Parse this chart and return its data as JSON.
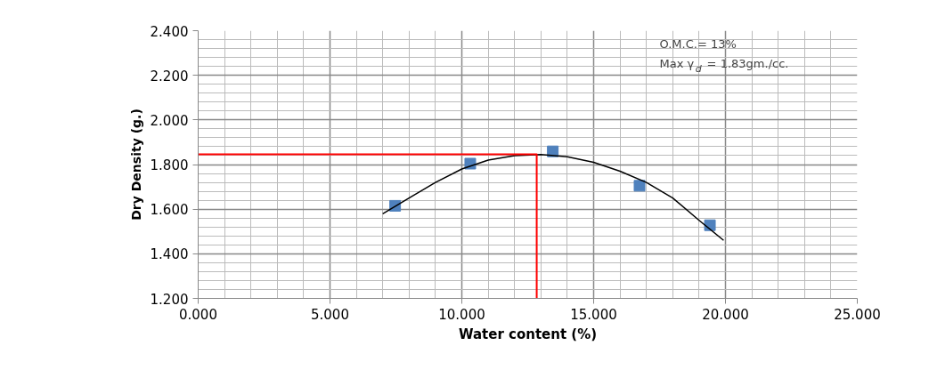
{
  "chart_data": {
    "type": "scatter",
    "xlabel": "Water content (%)",
    "ylabel": "Dry Density (g.)",
    "annotations": [
      "O.M.C.= 13%",
      "Max γ$_{d}$ = 1.83gm./cc."
    ],
    "xlim": [
      0,
      25
    ],
    "ylim": [
      1.2,
      2.4
    ],
    "xticks": [
      {
        "value": 0,
        "label": "0.000"
      },
      {
        "value": 5,
        "label": "5.000"
      },
      {
        "value": 10,
        "label": "10.000"
      },
      {
        "value": 15,
        "label": "15.000"
      },
      {
        "value": 20,
        "label": "20.000"
      },
      {
        "value": 25,
        "label": "25.000"
      }
    ],
    "yticks": [
      {
        "value": 1.2,
        "label": "1.200"
      },
      {
        "value": 1.4,
        "label": "1.400"
      },
      {
        "value": 1.6,
        "label": "1.600"
      },
      {
        "value": 1.8,
        "label": "1.800"
      },
      {
        "value": 2.0,
        "label": "2.000"
      },
      {
        "value": 2.2,
        "label": "2.200"
      },
      {
        "value": 2.4,
        "label": "2.400"
      }
    ],
    "grid": true,
    "marker": "square",
    "series": [
      {
        "type": "scatter",
        "color": "#4f81bd",
        "x": [
          7.47,
          10.32,
          13.45,
          16.74,
          19.41
        ],
        "values": [
          1.615,
          1.804,
          1.859,
          1.705,
          1.528
        ]
      },
      {
        "type": "line",
        "color": "#000000",
        "marker": "none",
        "x": [
          7,
          8,
          9,
          10,
          11,
          12,
          13,
          14,
          15,
          16,
          17,
          18,
          19,
          19.93
        ],
        "values": [
          1.579,
          1.65,
          1.72,
          1.78,
          1.82,
          1.84,
          1.845,
          1.835,
          1.81,
          1.77,
          1.72,
          1.65,
          1.55,
          1.46
        ]
      },
      {
        "type": "line",
        "color": "#ff0000",
        "marker": "none",
        "x": [
          0,
          12.84,
          12.84
        ],
        "values": [
          1.846,
          1.846,
          1.2
        ]
      }
    ]
  }
}
